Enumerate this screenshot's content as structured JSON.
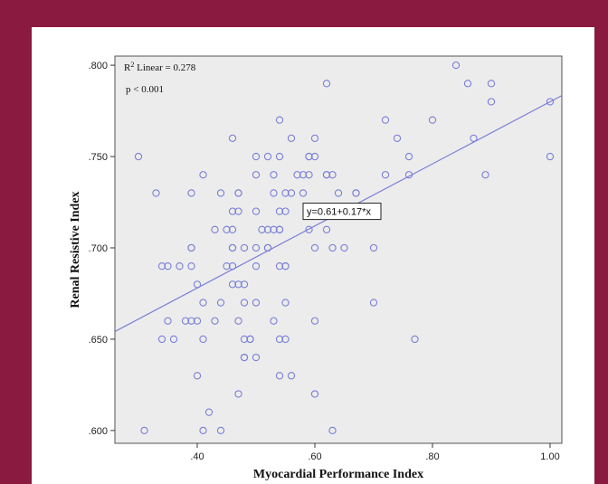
{
  "chart_data": {
    "type": "scatter",
    "xlabel": "Myocardial Performance Index",
    "ylabel": "Renal Resistive Index",
    "xlim": [
      0.26,
      1.02
    ],
    "ylim": [
      0.593,
      0.805
    ],
    "x_ticks": [
      ".40",
      ".60",
      ".80",
      "1.00"
    ],
    "x_tick_values": [
      0.4,
      0.6,
      0.8,
      1.0
    ],
    "y_ticks": [
      ".600",
      ".650",
      ".700",
      ".750",
      ".800"
    ],
    "y_tick_values": [
      0.6,
      0.65,
      0.7,
      0.75,
      0.8
    ],
    "fit_line": {
      "intercept": 0.61,
      "slope": 0.17
    },
    "equation_label": "y=0.61+0.17*x",
    "r2_label_prefix": "R",
    "r2_label_sup": "2",
    "r2_label_suffix": " Linear = 0.278",
    "p_label": "p < 0.001",
    "colors": {
      "point": "#7b7fd6",
      "line": "#7b7fd6",
      "plot_bg": "#ececec",
      "frame": "#8a1a3f"
    },
    "points": [
      [
        0.3,
        0.75
      ],
      [
        0.31,
        0.6
      ],
      [
        0.33,
        0.73
      ],
      [
        0.34,
        0.69
      ],
      [
        0.35,
        0.69
      ],
      [
        0.34,
        0.65
      ],
      [
        0.35,
        0.66
      ],
      [
        0.36,
        0.65
      ],
      [
        0.37,
        0.69
      ],
      [
        0.38,
        0.66
      ],
      [
        0.39,
        0.73
      ],
      [
        0.39,
        0.7
      ],
      [
        0.39,
        0.7
      ],
      [
        0.39,
        0.69
      ],
      [
        0.39,
        0.66
      ],
      [
        0.4,
        0.68
      ],
      [
        0.4,
        0.66
      ],
      [
        0.4,
        0.63
      ],
      [
        0.41,
        0.74
      ],
      [
        0.41,
        0.67
      ],
      [
        0.41,
        0.65
      ],
      [
        0.41,
        0.6
      ],
      [
        0.42,
        0.61
      ],
      [
        0.43,
        0.71
      ],
      [
        0.43,
        0.66
      ],
      [
        0.44,
        0.73
      ],
      [
        0.44,
        0.67
      ],
      [
        0.44,
        0.6
      ],
      [
        0.45,
        0.71
      ],
      [
        0.45,
        0.69
      ],
      [
        0.46,
        0.76
      ],
      [
        0.46,
        0.72
      ],
      [
        0.46,
        0.71
      ],
      [
        0.46,
        0.7
      ],
      [
        0.46,
        0.7
      ],
      [
        0.46,
        0.69
      ],
      [
        0.46,
        0.68
      ],
      [
        0.47,
        0.73
      ],
      [
        0.47,
        0.73
      ],
      [
        0.47,
        0.72
      ],
      [
        0.47,
        0.68
      ],
      [
        0.47,
        0.66
      ],
      [
        0.47,
        0.62
      ],
      [
        0.48,
        0.7
      ],
      [
        0.48,
        0.68
      ],
      [
        0.48,
        0.67
      ],
      [
        0.48,
        0.65
      ],
      [
        0.48,
        0.64
      ],
      [
        0.48,
        0.64
      ],
      [
        0.49,
        0.65
      ],
      [
        0.49,
        0.65
      ],
      [
        0.5,
        0.75
      ],
      [
        0.5,
        0.74
      ],
      [
        0.5,
        0.72
      ],
      [
        0.5,
        0.7
      ],
      [
        0.5,
        0.69
      ],
      [
        0.5,
        0.67
      ],
      [
        0.5,
        0.64
      ],
      [
        0.51,
        0.71
      ],
      [
        0.52,
        0.75
      ],
      [
        0.52,
        0.71
      ],
      [
        0.52,
        0.7
      ],
      [
        0.52,
        0.7
      ],
      [
        0.53,
        0.74
      ],
      [
        0.53,
        0.73
      ],
      [
        0.53,
        0.71
      ],
      [
        0.53,
        0.66
      ],
      [
        0.54,
        0.77
      ],
      [
        0.54,
        0.75
      ],
      [
        0.54,
        0.72
      ],
      [
        0.54,
        0.71
      ],
      [
        0.54,
        0.71
      ],
      [
        0.54,
        0.69
      ],
      [
        0.54,
        0.65
      ],
      [
        0.54,
        0.63
      ],
      [
        0.55,
        0.73
      ],
      [
        0.55,
        0.72
      ],
      [
        0.55,
        0.69
      ],
      [
        0.55,
        0.69
      ],
      [
        0.55,
        0.67
      ],
      [
        0.55,
        0.65
      ],
      [
        0.56,
        0.76
      ],
      [
        0.56,
        0.73
      ],
      [
        0.56,
        0.63
      ],
      [
        0.57,
        0.74
      ],
      [
        0.58,
        0.74
      ],
      [
        0.58,
        0.73
      ],
      [
        0.59,
        0.75
      ],
      [
        0.59,
        0.75
      ],
      [
        0.59,
        0.74
      ],
      [
        0.59,
        0.71
      ],
      [
        0.6,
        0.76
      ],
      [
        0.6,
        0.75
      ],
      [
        0.6,
        0.7
      ],
      [
        0.6,
        0.66
      ],
      [
        0.6,
        0.62
      ],
      [
        0.62,
        0.79
      ],
      [
        0.62,
        0.74
      ],
      [
        0.62,
        0.71
      ],
      [
        0.62,
        0.74
      ],
      [
        0.63,
        0.74
      ],
      [
        0.63,
        0.7
      ],
      [
        0.63,
        0.6
      ],
      [
        0.64,
        0.73
      ],
      [
        0.65,
        0.7
      ],
      [
        0.67,
        0.73
      ],
      [
        0.67,
        0.73
      ],
      [
        0.7,
        0.7
      ],
      [
        0.7,
        0.67
      ],
      [
        0.72,
        0.77
      ],
      [
        0.72,
        0.74
      ],
      [
        0.74,
        0.76
      ],
      [
        0.76,
        0.75
      ],
      [
        0.76,
        0.74
      ],
      [
        0.77,
        0.65
      ],
      [
        0.8,
        0.77
      ],
      [
        0.84,
        0.8
      ],
      [
        0.86,
        0.79
      ],
      [
        0.87,
        0.76
      ],
      [
        0.89,
        0.74
      ],
      [
        0.9,
        0.79
      ],
      [
        0.9,
        0.78
      ],
      [
        1.0,
        0.78
      ],
      [
        1.0,
        0.75
      ]
    ]
  }
}
